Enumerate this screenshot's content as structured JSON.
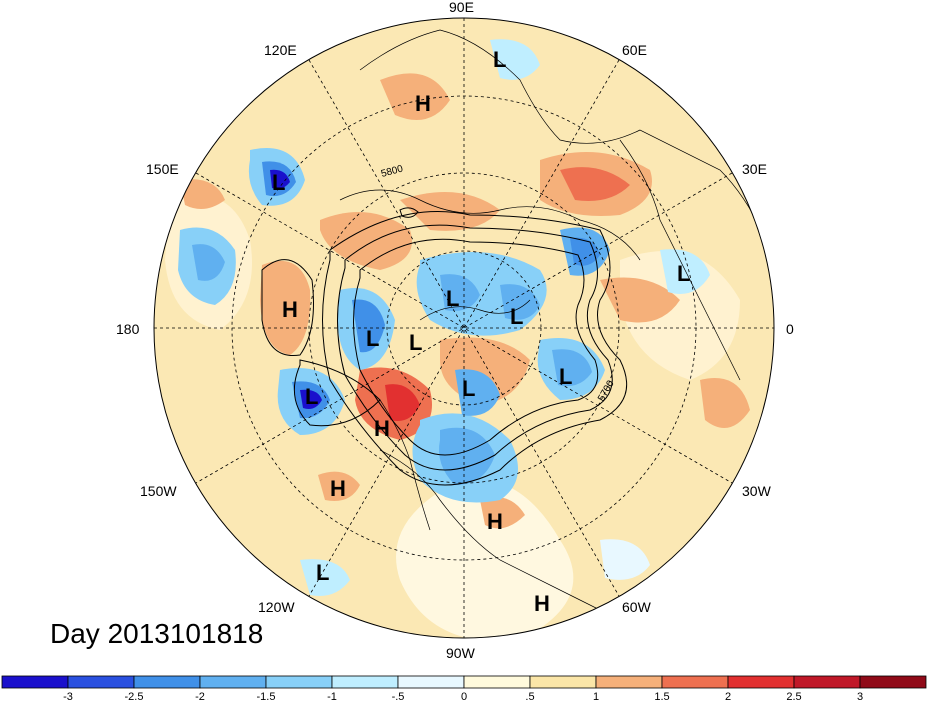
{
  "title": "Day 2013101818",
  "longitude_labels": [
    "90E",
    "60E",
    "30E",
    "0",
    "30W",
    "60W",
    "90W",
    "120W",
    "150W",
    "180",
    "150E",
    "120E"
  ],
  "contour_labels": [
    "5800",
    "5700"
  ],
  "pressure_centers": [
    {
      "type": "L"
    },
    {
      "type": "H"
    },
    {
      "type": "L"
    },
    {
      "type": "L"
    },
    {
      "type": "H"
    },
    {
      "type": "L"
    },
    {
      "type": "L"
    },
    {
      "type": "L"
    },
    {
      "type": "L"
    },
    {
      "type": "L"
    },
    {
      "type": "L"
    },
    {
      "type": "L"
    },
    {
      "type": "H"
    },
    {
      "type": "H"
    },
    {
      "type": "H"
    },
    {
      "type": "L"
    },
    {
      "type": "H"
    }
  ],
  "colorbar": {
    "tick_labels": [
      "-3",
      "-2.5",
      "-2",
      "-1.5",
      "-1",
      "-.5",
      "0",
      ".5",
      "1",
      "1.5",
      "2",
      "2.5",
      "3"
    ],
    "colors": [
      "#1a10cc",
      "#2a50e0",
      "#4090e8",
      "#60b0f0",
      "#88d0f8",
      "#bfeeff",
      "#e8f8ff",
      "#fffadc",
      "#fbe6a8",
      "#f5b07a",
      "#ee7050",
      "#e23030",
      "#c01828",
      "#900a18"
    ]
  }
}
